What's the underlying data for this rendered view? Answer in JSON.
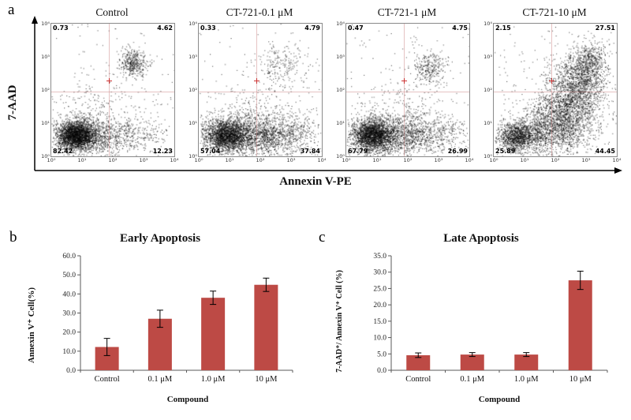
{
  "figure": {
    "panel_a_label": "a",
    "panel_b_label": "b",
    "panel_c_label": "c"
  },
  "flow_panel": {
    "y_axis_label": "7-AAD",
    "x_axis_label": "Annexin V-PE",
    "y_ticks": [
      "10⁴",
      "10³",
      "10²",
      "10¹",
      "10⁰"
    ],
    "x_ticks": [
      "10⁰",
      "10¹",
      "10²",
      "10³",
      "10⁴"
    ],
    "plots": [
      {
        "title": "Control",
        "quadrants": {
          "top_left": "0.73",
          "top_right": "4.62",
          "bottom_left": "82.42",
          "bottom_right": "12.23"
        }
      },
      {
        "title": "CT-721-0.1 μM",
        "quadrants": {
          "top_left": "0.33",
          "top_right": "4.79",
          "bottom_left": "57.04",
          "bottom_right": "37.84"
        }
      },
      {
        "title": "CT-721-1 μM",
        "quadrants": {
          "top_left": "0.47",
          "top_right": "4.75",
          "bottom_left": "67.79",
          "bottom_right": "26.99"
        }
      },
      {
        "title": "CT-721-10 μM",
        "quadrants": {
          "top_left": "2.15",
          "top_right": "27.51",
          "bottom_left": "25.89",
          "bottom_right": "44.45"
        }
      }
    ]
  },
  "chart_data": [
    {
      "type": "bar",
      "panel": "b",
      "title": "Early Apoptosis",
      "categories": [
        "Control",
        "0.1 μM",
        "1.0 μM",
        "10 μM"
      ],
      "values": [
        12.2,
        27.0,
        38.0,
        44.8
      ],
      "errors": [
        4.5,
        4.5,
        3.5,
        3.5
      ],
      "xlabel": "Compound",
      "ylabel": "Annexin V⁺ Cell(%)",
      "ylim": [
        0,
        60
      ],
      "ytick_step": 10,
      "grid": false,
      "legend": false,
      "bar_color": "#bd4a45",
      "axis_color": "#595959"
    },
    {
      "type": "bar",
      "panel": "c",
      "title": "Late Apoptosis",
      "categories": [
        "Control",
        "0.1 μM",
        "1.0 μM",
        "10 μM"
      ],
      "values": [
        4.6,
        4.8,
        4.8,
        27.5
      ],
      "errors": [
        0.7,
        0.6,
        0.6,
        2.8
      ],
      "xlabel": "Compound",
      "ylabel": "7-AAD⁺/ Annexin V⁺ Cell (%)",
      "ylim": [
        0,
        35
      ],
      "ytick_step": 5,
      "grid": false,
      "legend": false,
      "bar_color": "#bd4a45",
      "axis_color": "#595959"
    }
  ]
}
